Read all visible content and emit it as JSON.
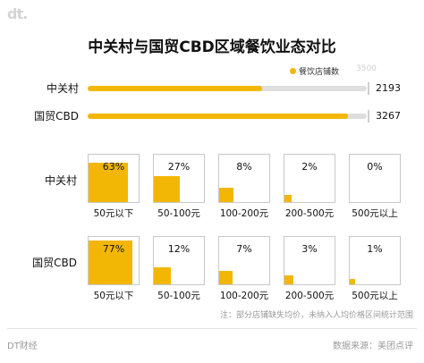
{
  "brand": {
    "logo_text": "dt.",
    "footer_left": "DT财经"
  },
  "colors": {
    "accent": "#f2b705",
    "track": "#dedede",
    "tile_border": "#c8c8c8"
  },
  "chart_data": [
    {
      "type": "bar",
      "title": "中关村与国贸CBD区域餐饮业态对比",
      "legend": "餐饮店铺数",
      "legend_position": "top-right",
      "scale_max_label": "3500",
      "xlim": [
        0,
        3500
      ],
      "categories": [
        "中关村",
        "国贸CBD"
      ],
      "values": [
        2193,
        3267
      ]
    },
    {
      "type": "table",
      "categories": [
        "50元以下",
        "50-100元",
        "100-200元",
        "200-500元",
        "500元以上"
      ],
      "series": [
        {
          "name": "中关村",
          "values": [
            63,
            27,
            8,
            2,
            0
          ],
          "labels": [
            "63%",
            "27%",
            "8%",
            "2%",
            "0%"
          ]
        },
        {
          "name": "国贸CBD",
          "values": [
            77,
            12,
            7,
            3,
            1
          ],
          "labels": [
            "77%",
            "12%",
            "7%",
            "3%",
            "1%"
          ]
        }
      ]
    }
  ],
  "note": "注：部分店铺缺失均价，未纳入人均价格区间统计范围",
  "source": "数据来源：美团点评"
}
